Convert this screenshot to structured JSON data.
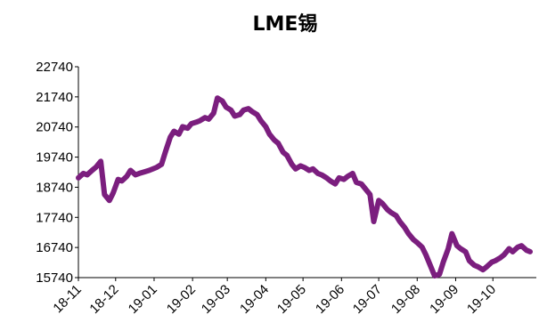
{
  "chart_data": {
    "type": "line",
    "title": "LME锡",
    "xlabel": "",
    "ylabel": "",
    "ylim": [
      15740,
      22740
    ],
    "yticks": [
      15740,
      16740,
      17740,
      18740,
      19740,
      20740,
      21740,
      22740
    ],
    "x_tick_labels": [
      "18-11",
      "18-12",
      "19-01",
      "19-02",
      "19-03",
      "19-04",
      "19-05",
      "19-06",
      "19-07",
      "19-08",
      "19-09",
      "19-10"
    ],
    "series_color": "#7b1e7e",
    "grid": false,
    "legend": "none",
    "series": [
      {
        "x": [
          "2018-11-01",
          "2018-11-05",
          "2018-11-08",
          "2018-11-12",
          "2018-11-15",
          "2018-11-19",
          "2018-11-22",
          "2018-11-26",
          "2018-11-29",
          "2018-12-03",
          "2018-12-06",
          "2018-12-10",
          "2018-12-13",
          "2018-12-17",
          "2018-12-20",
          "2018-12-24",
          "2018-12-28",
          "2019-01-03",
          "2019-01-07",
          "2019-01-10",
          "2019-01-14",
          "2019-01-17",
          "2019-01-21",
          "2019-01-24",
          "2019-01-28",
          "2019-01-31",
          "2019-02-04",
          "2019-02-07",
          "2019-02-11",
          "2019-02-14",
          "2019-02-18",
          "2019-02-21",
          "2019-02-25",
          "2019-02-28",
          "2019-03-04",
          "2019-03-07",
          "2019-03-11",
          "2019-03-14",
          "2019-03-18",
          "2019-03-21",
          "2019-03-25",
          "2019-03-28",
          "2019-04-01",
          "2019-04-04",
          "2019-04-08",
          "2019-04-11",
          "2019-04-15",
          "2019-04-18",
          "2019-04-22",
          "2019-04-25",
          "2019-04-29",
          "2019-05-02",
          "2019-05-06",
          "2019-05-09",
          "2019-05-13",
          "2019-05-16",
          "2019-05-20",
          "2019-05-23",
          "2019-05-27",
          "2019-05-30",
          "2019-06-03",
          "2019-06-06",
          "2019-06-10",
          "2019-06-13",
          "2019-06-17",
          "2019-06-20",
          "2019-06-24",
          "2019-06-27",
          "2019-07-01",
          "2019-07-04",
          "2019-07-08",
          "2019-07-11",
          "2019-07-15",
          "2019-07-18",
          "2019-07-22",
          "2019-07-25",
          "2019-07-29",
          "2019-08-01",
          "2019-08-05",
          "2019-08-08",
          "2019-08-12",
          "2019-08-15",
          "2019-08-19",
          "2019-08-22",
          "2019-08-26",
          "2019-08-29",
          "2019-09-02",
          "2019-09-05",
          "2019-09-09",
          "2019-09-12",
          "2019-09-16",
          "2019-09-19",
          "2019-09-23",
          "2019-09-26",
          "2019-09-30",
          "2019-10-03",
          "2019-10-07",
          "2019-10-10",
          "2019-10-14",
          "2019-10-17",
          "2019-10-21",
          "2019-10-24",
          "2019-10-28",
          "2019-10-31"
        ],
        "values": [
          19050,
          19200,
          19150,
          19300,
          19400,
          19600,
          18500,
          18300,
          18550,
          19000,
          18950,
          19100,
          19300,
          19150,
          19200,
          19250,
          19300,
          19400,
          19500,
          19900,
          20400,
          20600,
          20500,
          20750,
          20700,
          20850,
          20900,
          20950,
          21050,
          21000,
          21200,
          21700,
          21600,
          21400,
          21300,
          21100,
          21150,
          21300,
          21350,
          21250,
          21150,
          20950,
          20750,
          20500,
          20300,
          20200,
          19900,
          19800,
          19500,
          19350,
          19450,
          19400,
          19300,
          19350,
          19200,
          19150,
          19050,
          18950,
          18850,
          19050,
          19000,
          19100,
          19200,
          18900,
          18850,
          18700,
          18500,
          17600,
          18300,
          18200,
          18000,
          17900,
          17800,
          17600,
          17400,
          17200,
          17000,
          16900,
          16750,
          16500,
          16100,
          15800,
          15850,
          16250,
          16700,
          17200,
          16800,
          16700,
          16600,
          16300,
          16150,
          16100,
          16000,
          16100,
          16250,
          16300,
          16400,
          16500,
          16700,
          16600,
          16750,
          16800,
          16650,
          16600
        ]
      }
    ]
  }
}
